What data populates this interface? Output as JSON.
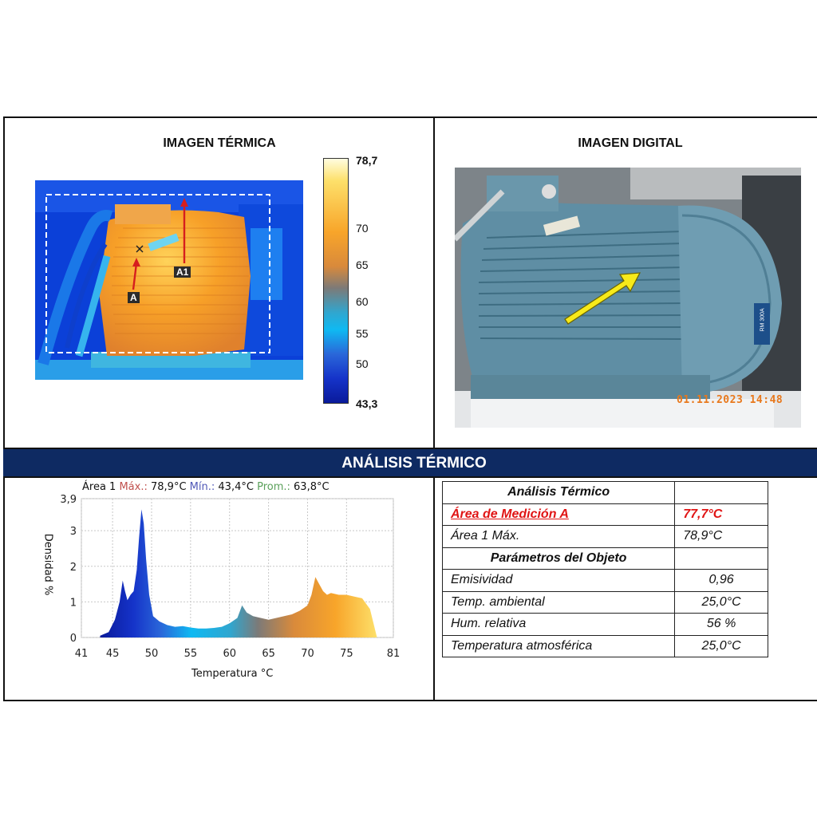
{
  "thermal_panel": {
    "title": "IMAGEN TÉRMICA",
    "marker_a": "A",
    "marker_a1": "A1",
    "colorbar": {
      "max": "78,7",
      "min": "43,3",
      "ticks": [
        "70",
        "65",
        "60",
        "55",
        "50"
      ]
    }
  },
  "digital_panel": {
    "title": "IMAGEN DIGITAL",
    "nameplate": "RM 300A",
    "timestamp": "01.11.2023 14:48"
  },
  "banner": {
    "title": "ANÁLISIS TÉRMICO"
  },
  "histogram": {
    "header": {
      "area": "Área 1",
      "max_label": "Máx.:",
      "max_value": "78,9°C",
      "min_label": "Mín.:",
      "min_value": "43,4°C",
      "avg_label": "Prom.:",
      "avg_value": "63,8°C"
    },
    "ylabel": "Densidad %",
    "xlabel": "Temperatura °C",
    "colors": {
      "max": "#c0504d",
      "min": "#4f57b7",
      "avg": "#5aa05a"
    }
  },
  "chart_data": {
    "type": "area",
    "xlabel": "Temperatura °C",
    "ylabel": "Densidad %",
    "xlim": [
      41,
      81
    ],
    "ylim": [
      0,
      3.9
    ],
    "x_ticks": [
      "41",
      "45",
      "50",
      "55",
      "60",
      "65",
      "70",
      "75",
      "81"
    ],
    "y_ticks": [
      "0",
      "1",
      "2",
      "3",
      "3,9"
    ],
    "grid": true,
    "x": [
      43.4,
      44.5,
      45.3,
      45.9,
      46.3,
      46.6,
      46.9,
      47.3,
      47.7,
      48.1,
      48.4,
      48.7,
      49.0,
      49.3,
      49.7,
      50.2,
      51.0,
      52.0,
      53.0,
      54.0,
      55.0,
      56.0,
      57.0,
      58.0,
      59.0,
      60.0,
      61.0,
      61.6,
      62.2,
      63.0,
      64.0,
      65.0,
      66.0,
      67.0,
      68.0,
      69.0,
      70.0,
      70.5,
      71.0,
      71.5,
      72.0,
      72.5,
      73.0,
      74.0,
      75.0,
      76.0,
      77.0,
      78.0,
      78.9
    ],
    "y": [
      0.05,
      0.15,
      0.5,
      1.0,
      1.6,
      1.3,
      1.05,
      1.2,
      1.3,
      1.9,
      2.8,
      3.6,
      3.2,
      2.2,
      1.2,
      0.6,
      0.45,
      0.35,
      0.3,
      0.32,
      0.28,
      0.25,
      0.25,
      0.27,
      0.3,
      0.4,
      0.55,
      0.9,
      0.7,
      0.6,
      0.55,
      0.5,
      0.55,
      0.6,
      0.65,
      0.75,
      0.9,
      1.2,
      1.7,
      1.5,
      1.3,
      1.2,
      1.25,
      1.2,
      1.2,
      1.15,
      1.1,
      0.8,
      0.0
    ]
  },
  "results_table": {
    "header": "Análisis Térmico",
    "measure_a_label": "Área de Medición A",
    "measure_a_value": "77,7°C",
    "area_max_label": "Área 1 Máx.",
    "area_max_value": "78,9°C",
    "params_header": "Parámetros del Objeto",
    "rows": [
      {
        "label": "Emisividad",
        "value": "0,96"
      },
      {
        "label": "Temp. ambiental",
        "value": "25,0°C"
      },
      {
        "label": "Hum. relativa",
        "value": "56 %"
      },
      {
        "label": "Temperatura atmosférica",
        "value": "25,0°C"
      }
    ]
  }
}
